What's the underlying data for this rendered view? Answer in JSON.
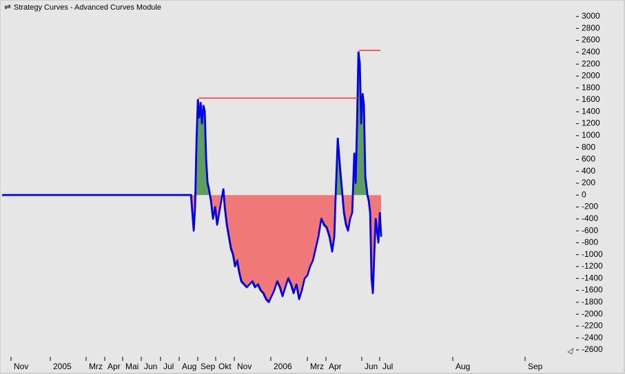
{
  "chart_data": {
    "type": "line",
    "title": "Strategy Curves - Advanced Curves Module",
    "xlim": [
      0,
      819
    ],
    "xticks": [
      {
        "value": 13,
        "label": "Nov"
      },
      {
        "value": 70,
        "label": "2005"
      },
      {
        "value": 122,
        "label": "Mrz"
      },
      {
        "value": 149,
        "label": "Apr"
      },
      {
        "value": 175,
        "label": "Mai"
      },
      {
        "value": 202,
        "label": "Jun"
      },
      {
        "value": 230,
        "label": "Jul"
      },
      {
        "value": 257,
        "label": "Aug"
      },
      {
        "value": 284,
        "label": "Sep"
      },
      {
        "value": 310,
        "label": "Okt"
      },
      {
        "value": 337,
        "label": "Nov"
      },
      {
        "value": 390,
        "label": "2006"
      },
      {
        "value": 443,
        "label": "Mrz"
      },
      {
        "value": 470,
        "label": "Apr"
      },
      {
        "value": 522,
        "label": "Jun"
      },
      {
        "value": 548,
        "label": "Jul"
      },
      {
        "value": 654,
        "label": "Aug"
      },
      {
        "value": 759,
        "label": "Sep"
      }
    ],
    "ylim": [
      -2600,
      3000
    ],
    "yticks": [
      3000,
      2800,
      2600,
      2400,
      2200,
      2000,
      1800,
      1600,
      1400,
      1200,
      1000,
      800,
      600,
      400,
      200,
      0,
      -200,
      -400,
      -600,
      -800,
      -1000,
      -1200,
      -1400,
      -1600,
      -1800,
      -2000,
      -2200,
      -2400,
      -2600
    ],
    "series": [
      {
        "color": "#0000ff",
        "positive_fill": "#5f9e5f",
        "negative_fill": "#f07878",
        "x": [
          0,
          274,
          276,
          278,
          280,
          282,
          284,
          286,
          288,
          290,
          292,
          294,
          296,
          298,
          300,
          303,
          306,
          309,
          312,
          315,
          318,
          321,
          323,
          326,
          329,
          332,
          335,
          338,
          341,
          344,
          347,
          351,
          355,
          359,
          363,
          367,
          371,
          375,
          379,
          383,
          387,
          391,
          395,
          399,
          403,
          407,
          411,
          415,
          419,
          423,
          427,
          431,
          435,
          439,
          443,
          447,
          451,
          455,
          459,
          463,
          467,
          471,
          475,
          479,
          482,
          484,
          487,
          490,
          493,
          496,
          499,
          502,
          505,
          508,
          511,
          513,
          515,
          517,
          519,
          521,
          523,
          525,
          527,
          530,
          532,
          534,
          536,
          538,
          540,
          542,
          544,
          546,
          548,
          550
        ],
        "values": [
          0,
          0,
          -300,
          -600,
          -200,
          900,
          1600,
          1300,
          1550,
          1200,
          1500,
          1400,
          600,
          200,
          100,
          -100,
          -400,
          -200,
          -500,
          -300,
          -100,
          100,
          -200,
          -500,
          -700,
          -900,
          -1000,
          -1200,
          -1100,
          -1300,
          -1450,
          -1500,
          -1550,
          -1500,
          -1450,
          -1550,
          -1500,
          -1600,
          -1650,
          -1750,
          -1800,
          -1700,
          -1600,
          -1450,
          -1550,
          -1700,
          -1550,
          -1400,
          -1500,
          -1650,
          -1500,
          -1750,
          -1600,
          -1400,
          -1350,
          -1200,
          -1100,
          -900,
          -700,
          -400,
          -500,
          -550,
          -700,
          -950,
          -700,
          0,
          950,
          500,
          100,
          -300,
          -500,
          -600,
          -400,
          -300,
          700,
          200,
          1200,
          2400,
          2200,
          1200,
          1700,
          1500,
          300,
          0,
          -100,
          -300,
          -1400,
          -1650,
          -1000,
          -400,
          -600,
          -800,
          -300,
          -700
        ]
      },
      {
        "color": "#ff3030",
        "x": [
          285,
          516,
          517,
          518,
          549
        ],
        "values": [
          1630,
          1630,
          null,
          2430,
          2430
        ]
      }
    ]
  }
}
